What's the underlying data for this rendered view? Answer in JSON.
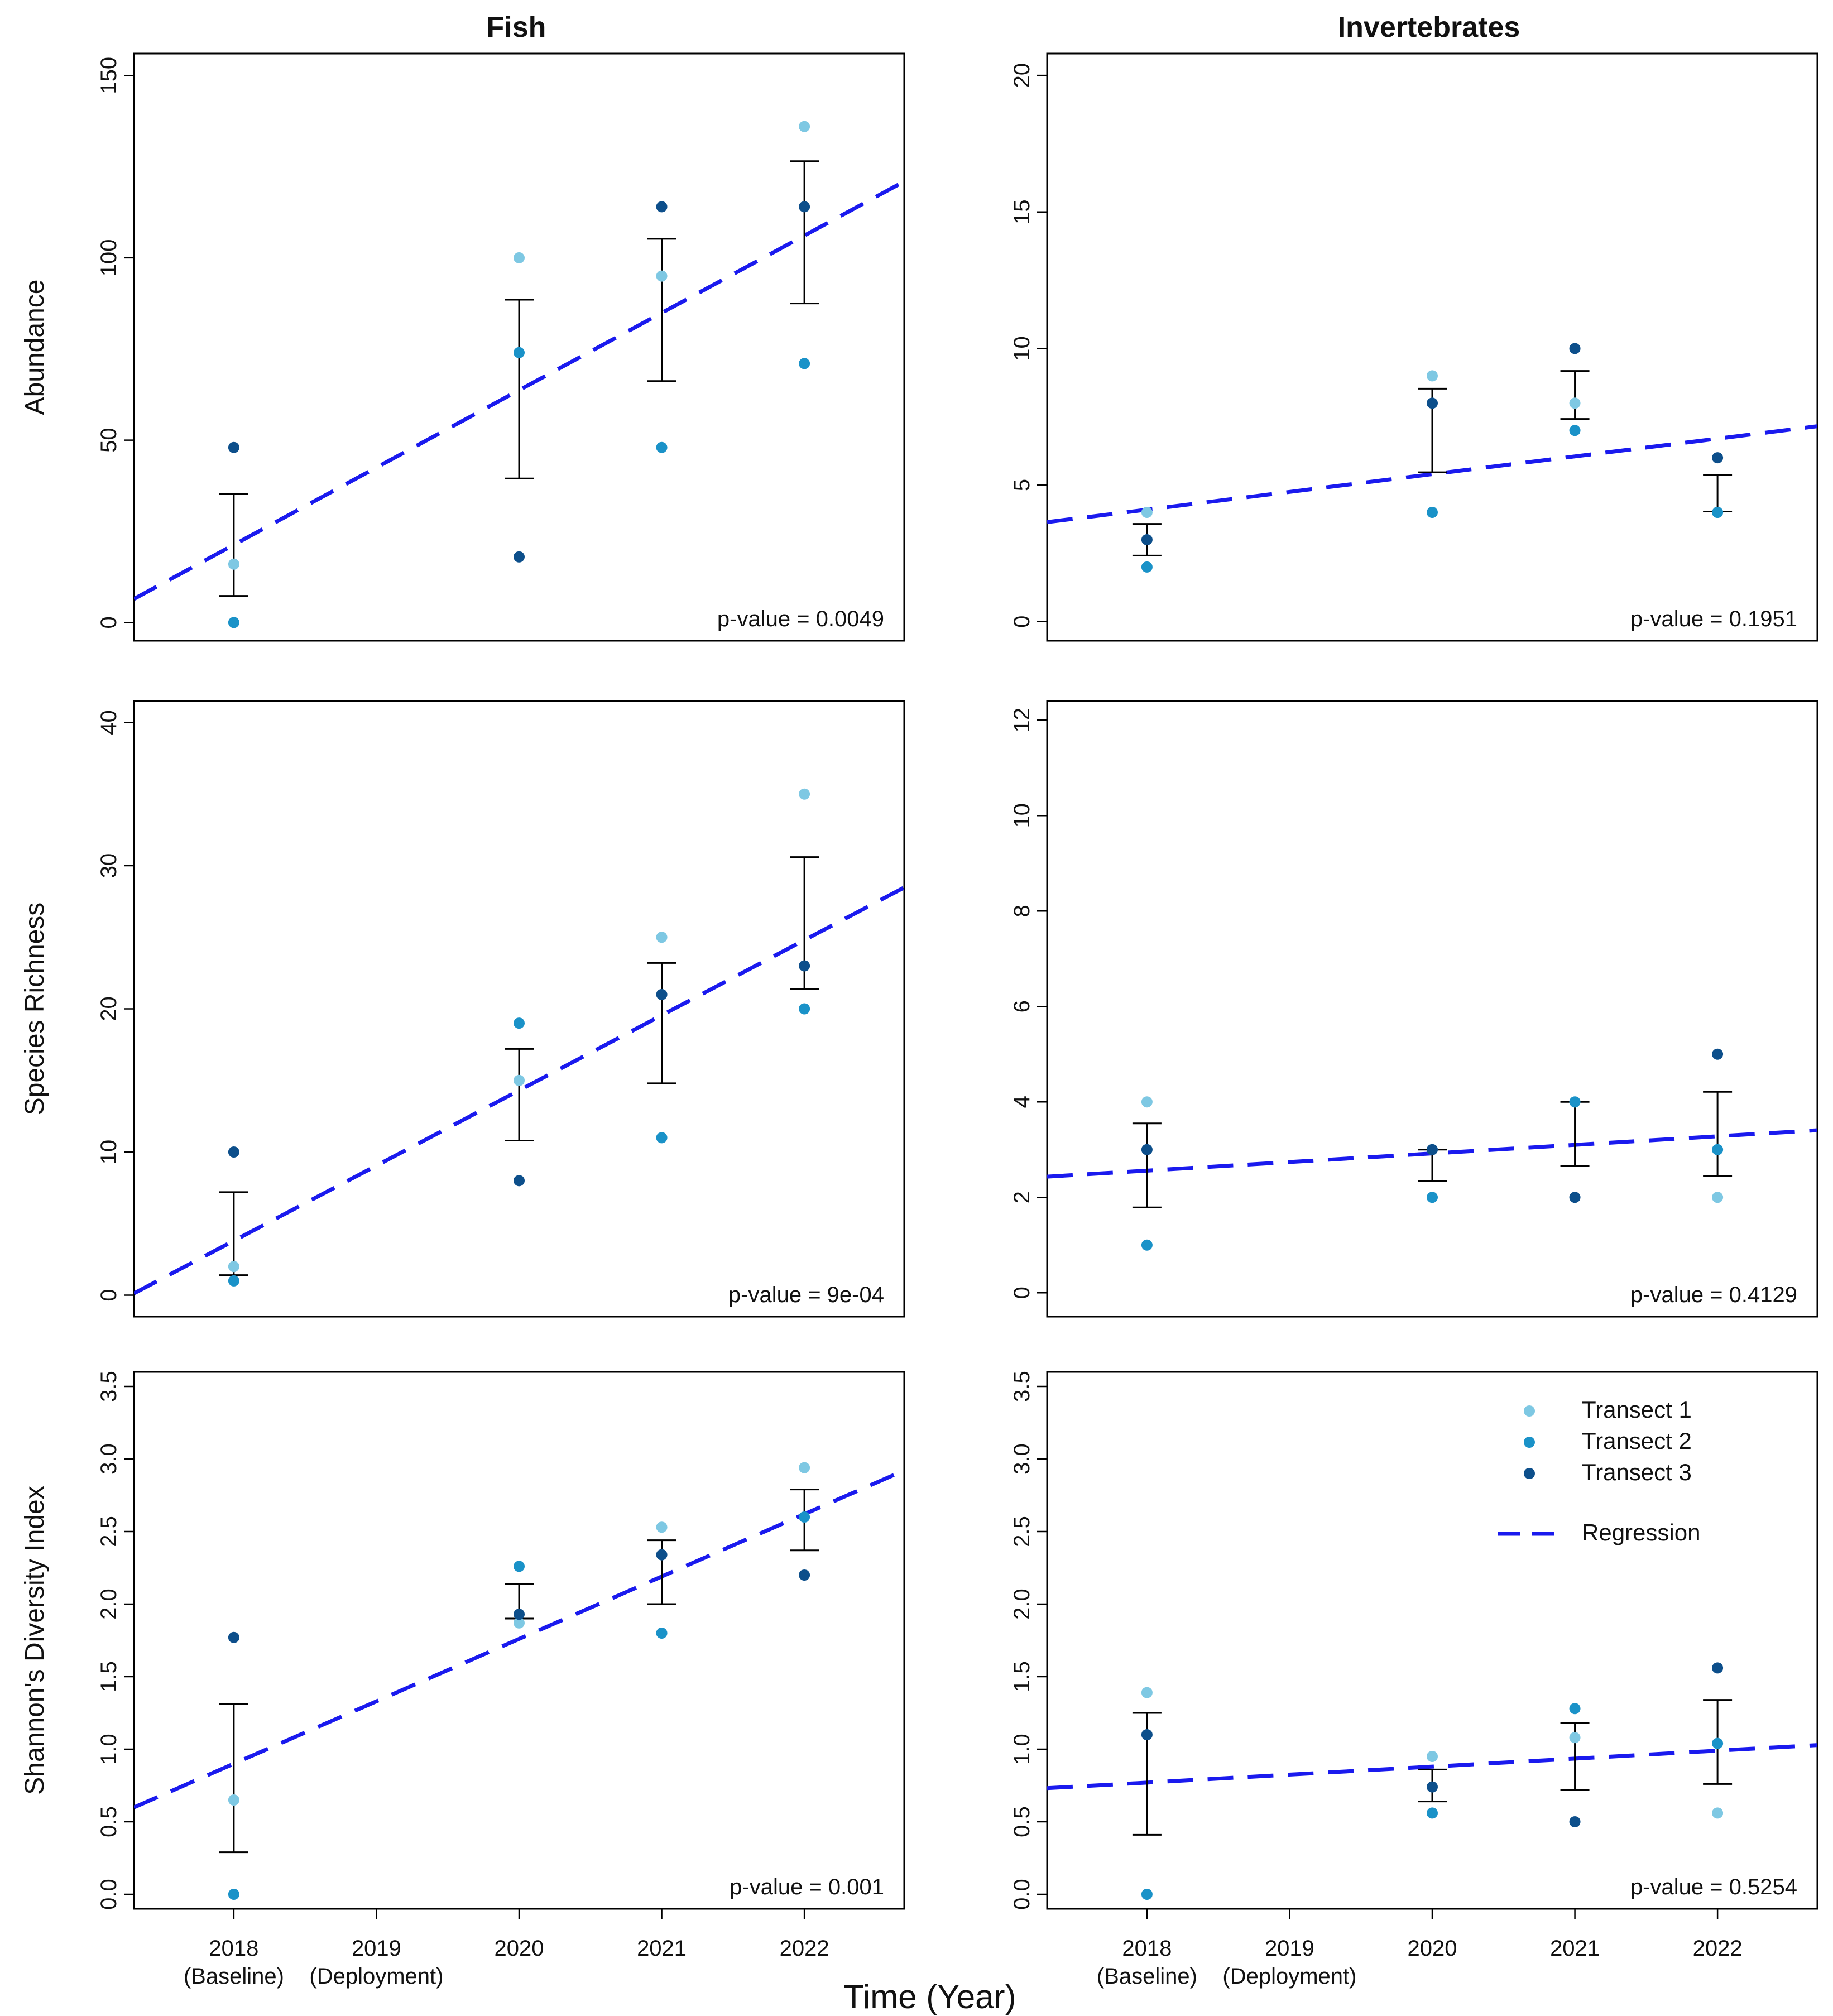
{
  "figure": {
    "x_axis_title": "Time (Year)",
    "x_ticks": [
      {
        "value": 2018,
        "line1": "2018",
        "line2": "(Baseline)"
      },
      {
        "value": 2019,
        "line1": "2019",
        "line2": "(Deployment)"
      },
      {
        "value": 2020,
        "line1": "2020",
        "line2": ""
      },
      {
        "value": 2021,
        "line1": "2021",
        "line2": ""
      },
      {
        "value": 2022,
        "line1": "2022",
        "line2": ""
      }
    ],
    "column_titles": [
      "Fish",
      "Invertebrates"
    ],
    "row_ylabels": [
      "Abundance",
      "Species Richness",
      "Shannon's Diversity Index"
    ],
    "xlim": [
      2017.3,
      2022.7
    ],
    "colors": {
      "transect1": "#7ec8e3",
      "transect2": "#1a92c8",
      "transect3": "#0d4f8b",
      "regression": "#1a1aee",
      "errorbar": "#000000"
    },
    "legend": {
      "entries": [
        {
          "label": "Transect 1",
          "color": "#7ec8e3"
        },
        {
          "label": "Transect 2",
          "color": "#1a92c8"
        },
        {
          "label": "Transect 3",
          "color": "#0d4f8b"
        }
      ],
      "regression_label": "Regression",
      "placement": "top-right of invertebrates diversity panel"
    }
  },
  "chart_data": [
    {
      "type": "scatter",
      "id": "fish-abundance",
      "title": "Fish",
      "ylabel": "Abundance",
      "ylim": [
        -5,
        156
      ],
      "yticks": [
        0,
        50,
        100,
        150
      ],
      "ytick_labels": [
        "0",
        "50",
        "100",
        "150"
      ],
      "years": [
        2018,
        2020,
        2021,
        2022
      ],
      "series": [
        {
          "name": "Transect 1",
          "values": [
            16,
            100,
            95,
            136
          ]
        },
        {
          "name": "Transect 2",
          "values": [
            0,
            74,
            48,
            71
          ]
        },
        {
          "name": "Transect 3",
          "values": [
            48,
            18,
            114,
            114
          ]
        }
      ],
      "means": [
        21.3,
        64,
        85.7,
        107
      ],
      "errors": [
        14,
        24.5,
        19.5,
        19.5
      ],
      "regression": {
        "slope": 21.2,
        "intercept": 21.3
      },
      "p_value_text": "p-value = 0.0049"
    },
    {
      "type": "scatter",
      "id": "invert-abundance",
      "title": "Invertebrates",
      "ylabel": "",
      "ylim": [
        -0.7,
        20.8
      ],
      "yticks": [
        0,
        5,
        10,
        15,
        20
      ],
      "ytick_labels": [
        "0",
        "5",
        "10",
        "15",
        "20"
      ],
      "years": [
        2018,
        2020,
        2021,
        2022
      ],
      "series": [
        {
          "name": "Transect 1",
          "values": [
            4,
            9,
            8,
            4
          ]
        },
        {
          "name": "Transect 2",
          "values": [
            2,
            4,
            7,
            4
          ]
        },
        {
          "name": "Transect 3",
          "values": [
            3,
            8,
            10,
            6
          ]
        }
      ],
      "means": [
        3,
        7,
        8.3,
        4.7
      ],
      "errors": [
        0.58,
        1.53,
        0.88,
        0.67
      ],
      "regression": {
        "slope": 0.65,
        "intercept": 4.1
      },
      "p_value_text": "p-value = 0.1951"
    },
    {
      "type": "scatter",
      "id": "fish-richness",
      "title": "",
      "ylabel": "Species Richness",
      "ylim": [
        -1.5,
        41.5
      ],
      "yticks": [
        0,
        10,
        20,
        30,
        40
      ],
      "ytick_labels": [
        "0",
        "10",
        "20",
        "30",
        "40"
      ],
      "years": [
        2018,
        2020,
        2021,
        2022
      ],
      "series": [
        {
          "name": "Transect 1",
          "values": [
            2,
            15,
            25,
            35
          ]
        },
        {
          "name": "Transect 2",
          "values": [
            1,
            19,
            11,
            20
          ]
        },
        {
          "name": "Transect 3",
          "values": [
            10,
            8,
            21,
            23
          ]
        }
      ],
      "means": [
        4.3,
        14,
        19,
        26
      ],
      "errors": [
        2.9,
        3.2,
        4.2,
        4.6
      ],
      "regression": {
        "slope": 5.25,
        "intercept": 3.8
      },
      "p_value_text": "p-value =  9e-04"
    },
    {
      "type": "scatter",
      "id": "invert-richness",
      "title": "",
      "ylabel": "",
      "ylim": [
        -0.5,
        12.4
      ],
      "yticks": [
        0,
        2,
        4,
        6,
        8,
        10,
        12
      ],
      "ytick_labels": [
        "0",
        "2",
        "4",
        "6",
        "8",
        "10",
        "12"
      ],
      "years": [
        2018,
        2020,
        2021,
        2022
      ],
      "series": [
        {
          "name": "Transect 1",
          "values": [
            4,
            3,
            4,
            2
          ]
        },
        {
          "name": "Transect 2",
          "values": [
            1,
            2,
            4,
            3
          ]
        },
        {
          "name": "Transect 3",
          "values": [
            3,
            3,
            2,
            5
          ]
        }
      ],
      "means": [
        2.67,
        2.67,
        3.33,
        3.33
      ],
      "errors": [
        0.88,
        0.33,
        0.67,
        0.88
      ],
      "regression": {
        "slope": 0.18,
        "intercept": 2.56
      },
      "p_value_text": "p-value = 0.4129"
    },
    {
      "type": "scatter",
      "id": "fish-diversity",
      "title": "",
      "ylabel": "Shannon's Diversity Index",
      "ylim": [
        -0.1,
        3.6
      ],
      "yticks": [
        0,
        0.5,
        1,
        1.5,
        2,
        2.5,
        3,
        3.5
      ],
      "ytick_labels": [
        "0.0",
        "0.5",
        "1.0",
        "1.5",
        "2.0",
        "2.5",
        "3.0",
        "3.5"
      ],
      "years": [
        2018,
        2020,
        2021,
        2022
      ],
      "series": [
        {
          "name": "Transect 1",
          "values": [
            0.65,
            1.87,
            2.53,
            2.94
          ]
        },
        {
          "name": "Transect 2",
          "values": [
            0,
            2.26,
            1.8,
            2.6
          ]
        },
        {
          "name": "Transect 3",
          "values": [
            1.77,
            1.93,
            2.34,
            2.2
          ]
        }
      ],
      "means": [
        0.8,
        2.02,
        2.22,
        2.58
      ],
      "errors": [
        0.51,
        0.12,
        0.22,
        0.21
      ],
      "regression": {
        "slope": 0.43,
        "intercept": 0.9
      },
      "p_value_text": "p-value = 0.001"
    },
    {
      "type": "scatter",
      "id": "invert-diversity",
      "title": "",
      "ylabel": "",
      "ylim": [
        -0.1,
        3.6
      ],
      "yticks": [
        0,
        0.5,
        1,
        1.5,
        2,
        2.5,
        3,
        3.5
      ],
      "ytick_labels": [
        "0.0",
        "0.5",
        "1.0",
        "1.5",
        "2.0",
        "2.5",
        "3.0",
        "3.5"
      ],
      "years": [
        2018,
        2020,
        2021,
        2022
      ],
      "series": [
        {
          "name": "Transect 1",
          "values": [
            1.39,
            0.95,
            1.08,
            0.56
          ]
        },
        {
          "name": "Transect 2",
          "values": [
            0,
            0.56,
            1.28,
            1.04
          ]
        },
        {
          "name": "Transect 3",
          "values": [
            1.1,
            0.74,
            0.5,
            1.56
          ]
        }
      ],
      "means": [
        0.83,
        0.75,
        0.95,
        1.05
      ],
      "errors": [
        0.42,
        0.11,
        0.23,
        0.29
      ],
      "regression": {
        "slope": 0.055,
        "intercept": 0.77
      },
      "p_value_text": "p-value = 0.5254"
    }
  ]
}
